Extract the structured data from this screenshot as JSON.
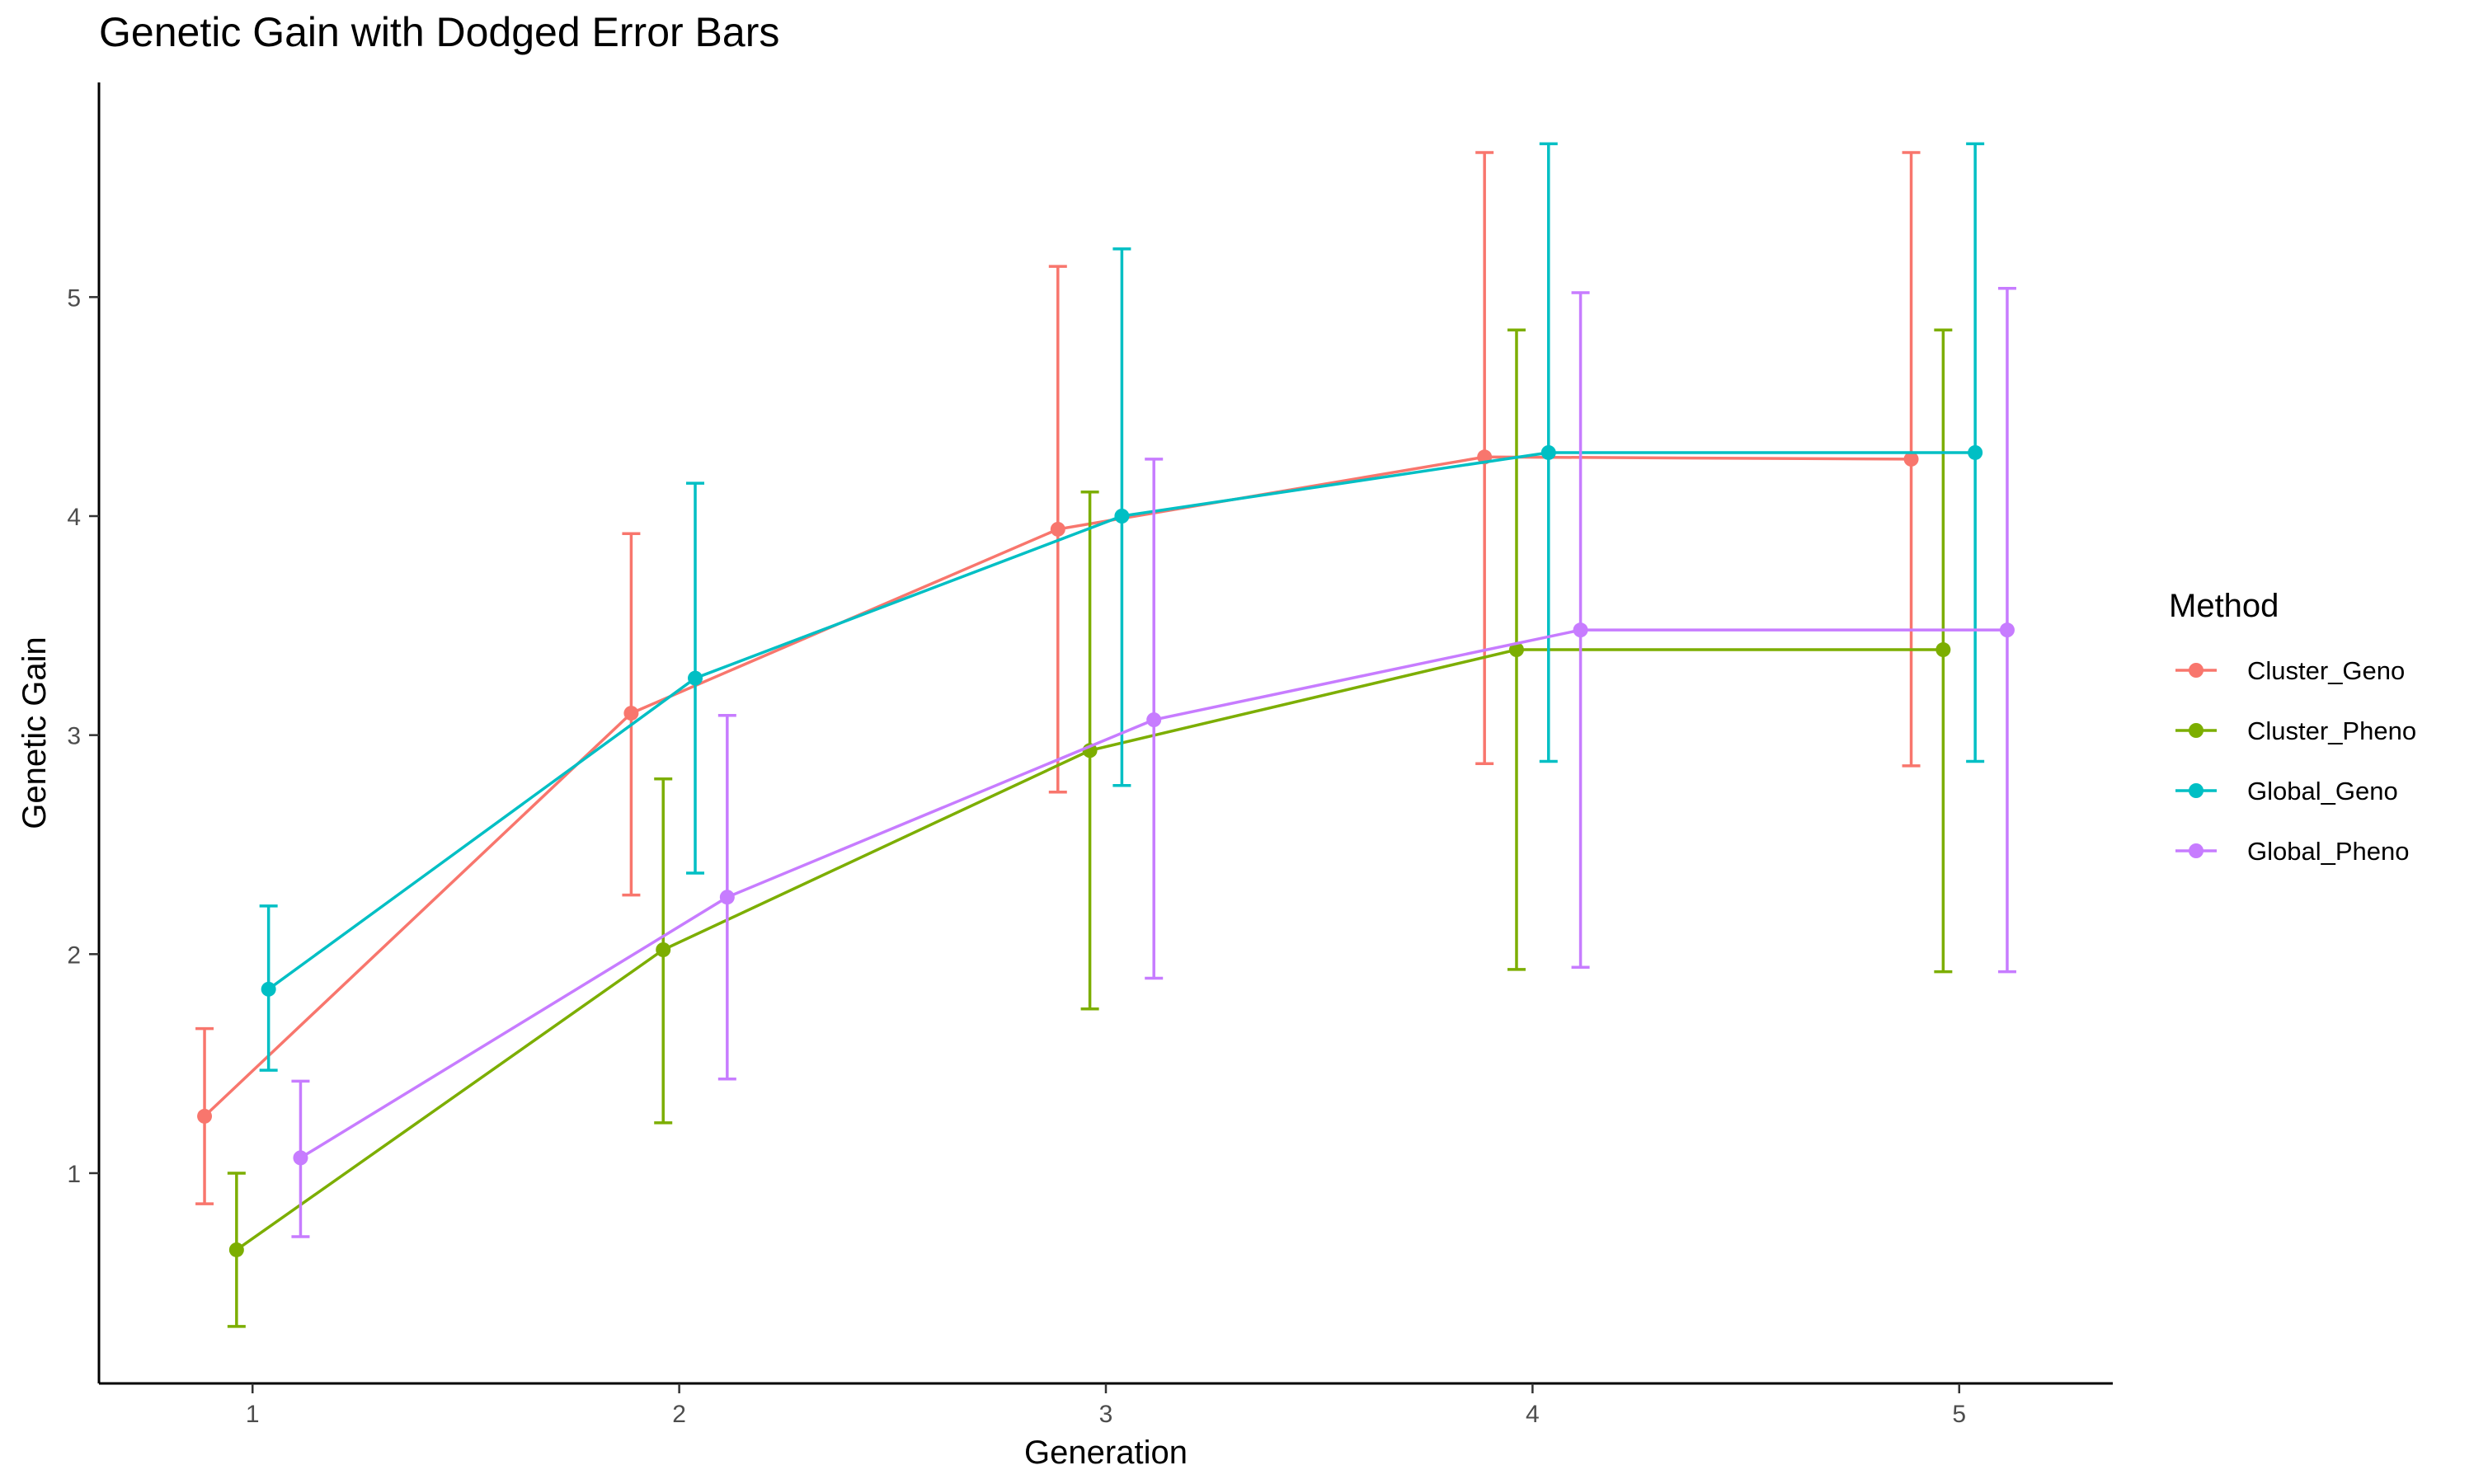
{
  "chart_data": {
    "type": "line",
    "title": "Genetic Gain with Dodged Error Bars",
    "xlabel": "Generation",
    "ylabel": "Genetic Gain",
    "x": [
      1,
      2,
      3,
      4,
      5
    ],
    "xticks": [
      "1",
      "2",
      "3",
      "4",
      "5"
    ],
    "yticks": [
      "1",
      "2",
      "3",
      "4",
      "5"
    ],
    "xlim": [
      0.64,
      5.36
    ],
    "ylim": [
      0.04,
      5.98
    ],
    "legend_title": "Method",
    "legend_position": "right",
    "grid": false,
    "error_bars": true,
    "series": [
      {
        "name": "Cluster_Geno",
        "color": "#F8766D",
        "values": [
          1.26,
          3.1,
          3.94,
          4.27,
          4.26
        ],
        "lower": [
          0.86,
          2.27,
          2.74,
          2.87,
          2.86
        ],
        "upper": [
          1.66,
          3.92,
          5.14,
          5.66,
          5.66
        ]
      },
      {
        "name": "Cluster_Pheno",
        "color": "#7CAE00",
        "values": [
          0.65,
          2.02,
          2.93,
          3.39,
          3.39
        ],
        "lower": [
          0.3,
          1.23,
          1.75,
          1.93,
          1.92
        ],
        "upper": [
          1.0,
          2.8,
          4.11,
          4.85,
          4.85
        ]
      },
      {
        "name": "Global_Geno",
        "color": "#00BFC4",
        "values": [
          1.84,
          3.26,
          4.0,
          4.29,
          4.29
        ],
        "lower": [
          1.47,
          2.37,
          2.77,
          2.88,
          2.88
        ],
        "upper": [
          2.22,
          4.15,
          5.22,
          5.7,
          5.7
        ]
      },
      {
        "name": "Global_Pheno",
        "color": "#C77CFF",
        "values": [
          1.07,
          2.26,
          3.07,
          3.48,
          3.48
        ],
        "lower": [
          0.71,
          1.43,
          1.89,
          1.94,
          1.92
        ],
        "upper": [
          1.42,
          3.09,
          4.26,
          5.02,
          5.04
        ]
      }
    ]
  }
}
